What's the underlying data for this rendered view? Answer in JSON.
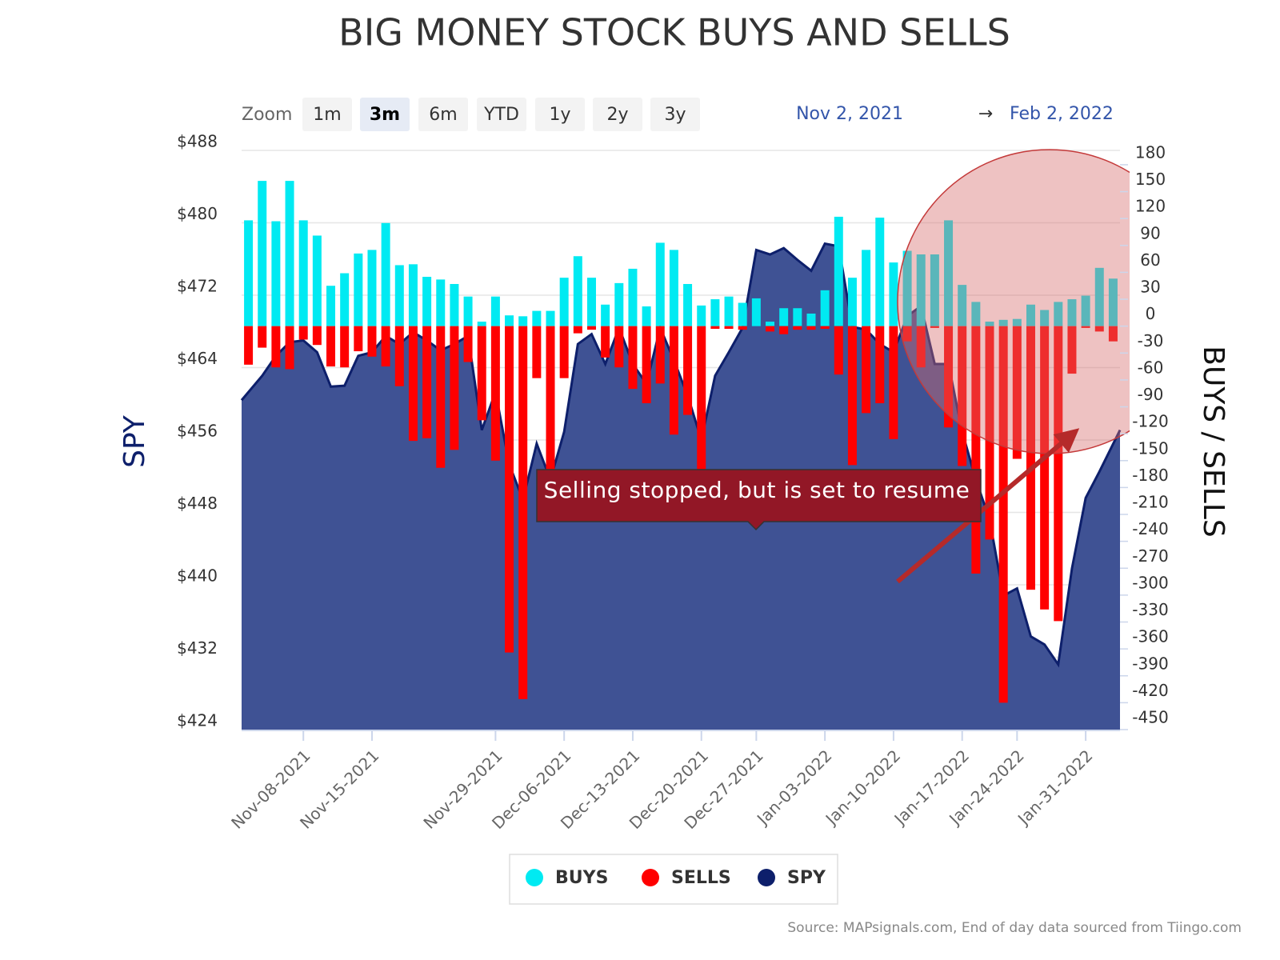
{
  "chart_data": {
    "type": "bar",
    "title": "BIG MONEY STOCK BUYS AND SELLS",
    "zoom": {
      "label": "Zoom",
      "buttons": [
        "1m",
        "3m",
        "6m",
        "YTD",
        "1y",
        "2y",
        "3y"
      ],
      "selected": 1
    },
    "range": {
      "from": "Nov 2, 2021",
      "separator": "→",
      "to": "Feb 2, 2022"
    },
    "y_label": "SPY",
    "y2_label": "BUYS / SELLS",
    "annotation": "Selling stopped, but is set to resume",
    "source": "Source: MAPsignals.com, End of day data sourced from Tiingo.com",
    "x": [
      "2021-11-02",
      "2021-11-03",
      "2021-11-04",
      "2021-11-05",
      "2021-11-08",
      "2021-11-09",
      "2021-11-10",
      "2021-11-11",
      "2021-11-12",
      "2021-11-15",
      "2021-11-16",
      "2021-11-17",
      "2021-11-18",
      "2021-11-19",
      "2021-11-22",
      "2021-11-23",
      "2021-11-24",
      "2021-11-26",
      "2021-11-29",
      "2021-11-30",
      "2021-12-01",
      "2021-12-02",
      "2021-12-03",
      "2021-12-06",
      "2021-12-07",
      "2021-12-08",
      "2021-12-09",
      "2021-12-10",
      "2021-12-13",
      "2021-12-14",
      "2021-12-15",
      "2021-12-16",
      "2021-12-17",
      "2021-12-20",
      "2021-12-21",
      "2021-12-22",
      "2021-12-23",
      "2021-12-27",
      "2021-12-28",
      "2021-12-29",
      "2021-12-30",
      "2021-12-31",
      "2022-01-03",
      "2022-01-04",
      "2022-01-05",
      "2022-01-06",
      "2022-01-07",
      "2022-01-10",
      "2022-01-11",
      "2022-01-12",
      "2022-01-13",
      "2022-01-14",
      "2022-01-18",
      "2022-01-19",
      "2022-01-20",
      "2022-01-21",
      "2022-01-24",
      "2022-01-25",
      "2022-01-26",
      "2022-01-27",
      "2022-01-28",
      "2022-01-31",
      "2022-02-01",
      "2022-02-02"
    ],
    "xticks": [
      {
        "value": "2021-11-08",
        "label": "Nov-08-2021"
      },
      {
        "value": "2021-11-15",
        "label": "Nov-15-2021"
      },
      {
        "value": "2021-11-29",
        "label": "Nov-29-2021"
      },
      {
        "value": "2021-12-06",
        "label": "Dec-06-2021"
      },
      {
        "value": "2021-12-13",
        "label": "Dec-13-2021"
      },
      {
        "value": "2021-12-20",
        "label": "Dec-20-2021"
      },
      {
        "value": "2021-12-27",
        "label": "Dec-27-2021"
      },
      {
        "value": "2022-01-03",
        "label": "Jan-03-2022"
      },
      {
        "value": "2022-01-10",
        "label": "Jan-10-2022"
      },
      {
        "value": "2022-01-17",
        "label": "Jan-17-2022"
      },
      {
        "value": "2022-01-24",
        "label": "Jan-24-2022"
      },
      {
        "value": "2022-01-31",
        "label": "Jan-31-2022"
      }
    ],
    "ylim": [
      424,
      488
    ],
    "yticks": [
      {
        "value": 424,
        "label": "$424"
      },
      {
        "value": 432,
        "label": "$432"
      },
      {
        "value": 440,
        "label": "$440"
      },
      {
        "value": 448,
        "label": "$448"
      },
      {
        "value": 456,
        "label": "$456"
      },
      {
        "value": 464,
        "label": "$464"
      },
      {
        "value": 472,
        "label": "$472"
      },
      {
        "value": 480,
        "label": "$480"
      },
      {
        "value": 488,
        "label": "$488"
      }
    ],
    "y2lim": [
      -450,
      196
    ],
    "y2ticks": [
      -450,
      -420,
      -390,
      -360,
      -330,
      -300,
      -270,
      -240,
      -210,
      -180,
      -150,
      -120,
      -90,
      -60,
      -30,
      0,
      30,
      60,
      90,
      120,
      150,
      180
    ],
    "grid": true,
    "legend": "bottom",
    "series": [
      {
        "name": "SPY",
        "type": "area",
        "color": "#3f5294",
        "line_color": "#0d1f6b",
        "values": [
          460.4,
          463.1,
          465.3,
          466.8,
          467.0,
          465.7,
          461.9,
          462.0,
          465.3,
          465.7,
          467.5,
          466.6,
          467.9,
          467.0,
          465.9,
          466.6,
          467.5,
          457.1,
          461.3,
          453.3,
          449.4,
          455.6,
          451.6,
          456.9,
          466.6,
          467.7,
          464.4,
          468.4,
          464.4,
          462.2,
          468.4,
          464.8,
          460.9,
          456.0,
          463.1,
          465.7,
          468.4,
          477.0,
          476.5,
          477.2,
          475.9,
          474.7,
          477.7,
          477.4,
          468.5,
          468.2,
          466.6,
          465.7,
          469.7,
          470.8,
          464.4,
          464.4,
          456.9,
          451.6,
          447.2,
          438.8,
          439.6,
          434.3,
          433.4,
          431.2,
          441.8,
          449.6,
          452.5,
          457.1
        ]
      },
      {
        "name": "BUYS",
        "type": "bar",
        "axis": "y2",
        "color": "#00eaf2",
        "values": [
          118,
          162,
          117,
          162,
          118,
          101,
          45,
          59,
          81,
          85,
          115,
          68,
          69,
          55,
          52,
          47,
          33,
          5,
          33,
          12,
          11,
          17,
          17,
          54,
          78,
          54,
          24,
          48,
          64,
          22,
          93,
          85,
          47,
          23,
          30,
          33,
          26,
          31,
          5,
          20,
          20,
          14,
          40,
          122,
          54,
          85,
          121,
          71,
          84,
          80,
          80,
          118,
          46,
          27,
          5,
          7,
          8,
          24,
          18,
          27,
          30,
          34,
          65,
          53
        ]
      },
      {
        "name": "SELLS",
        "type": "bar",
        "axis": "y2",
        "color": "#ff0000",
        "values": [
          -43,
          -24,
          -46,
          -48,
          -15,
          -21,
          -45,
          -46,
          -28,
          -34,
          -45,
          -67,
          -128,
          -125,
          -158,
          -138,
          -40,
          -105,
          -150,
          -364,
          -416,
          -58,
          -162,
          -58,
          -8,
          -4,
          -35,
          -46,
          -70,
          -86,
          -64,
          -121,
          -99,
          -162,
          -3,
          -3,
          -4,
          0,
          -6,
          -9,
          -4,
          -4,
          -3,
          -54,
          -155,
          -97,
          -86,
          -126,
          -17,
          -46,
          -2,
          -113,
          -156,
          -276,
          -238,
          -420,
          -148,
          -294,
          -316,
          -329,
          -53,
          -2,
          -6,
          -17
        ]
      }
    ],
    "legend_order": [
      1,
      2,
      0
    ]
  }
}
